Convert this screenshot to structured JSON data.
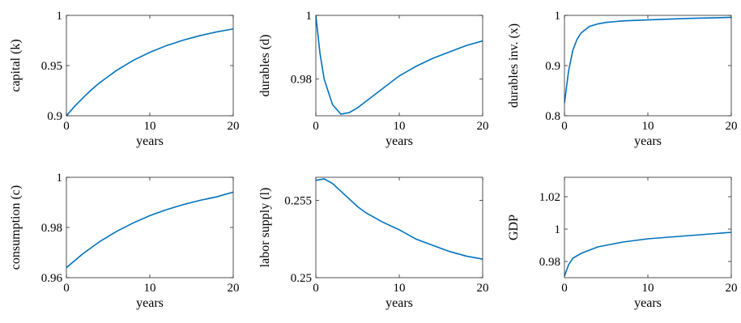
{
  "chart_data": [
    {
      "type": "line",
      "ylabel": "capital (k)",
      "xlabel": "years",
      "xlim": [
        0,
        20
      ],
      "xticks": [
        0,
        10,
        20
      ],
      "ylim": [
        0.9,
        1
      ],
      "yticks": [
        0.9,
        0.95,
        1
      ],
      "series": [
        {
          "color": "#0072bd",
          "x": [
            0,
            1,
            2,
            3,
            4,
            6,
            8,
            10,
            12,
            14,
            16,
            18,
            20
          ],
          "values": [
            0.9,
            0.9095,
            0.918,
            0.9259,
            0.933,
            0.9451,
            0.9551,
            0.9632,
            0.9699,
            0.9753,
            0.9798,
            0.9835,
            0.9865
          ]
        }
      ]
    },
    {
      "type": "line",
      "ylabel": "durables (d)",
      "xlabel": "years",
      "xlim": [
        0,
        20
      ],
      "xticks": [
        0,
        10,
        20
      ],
      "ylim": [
        0.9685,
        1
      ],
      "yticks": [
        0.98,
        1
      ],
      "series": [
        {
          "color": "#0072bd",
          "x": [
            0,
            0.5,
            1,
            2,
            3,
            4,
            5,
            6,
            8,
            10,
            12,
            14,
            16,
            18,
            20
          ],
          "values": [
            1,
            0.988,
            0.98,
            0.972,
            0.969,
            0.9695,
            0.971,
            0.973,
            0.977,
            0.981,
            0.984,
            0.9865,
            0.9885,
            0.9905,
            0.992
          ]
        }
      ]
    },
    {
      "type": "line",
      "ylabel": "durables inv. (x)",
      "xlabel": "years",
      "xlim": [
        0,
        20
      ],
      "xticks": [
        0,
        10,
        20
      ],
      "ylim": [
        0.8,
        1
      ],
      "yticks": [
        0.8,
        0.9,
        1
      ],
      "series": [
        {
          "color": "#0072bd",
          "x": [
            0,
            0.5,
            1,
            1.5,
            2,
            3,
            4,
            5,
            7,
            10,
            15,
            20
          ],
          "values": [
            0.825,
            0.89,
            0.93,
            0.952,
            0.965,
            0.978,
            0.983,
            0.986,
            0.989,
            0.991,
            0.994,
            0.996
          ]
        }
      ]
    },
    {
      "type": "line",
      "ylabel": "consumption (c)",
      "xlabel": "years",
      "xlim": [
        0,
        20
      ],
      "xticks": [
        0,
        10,
        20
      ],
      "ylim": [
        0.96,
        1
      ],
      "yticks": [
        0.96,
        0.98,
        1
      ],
      "series": [
        {
          "color": "#0072bd",
          "x": [
            0,
            2,
            4,
            6,
            8,
            10,
            12,
            14,
            16,
            18,
            20
          ],
          "values": [
            0.964,
            0.9696,
            0.9744,
            0.9784,
            0.9818,
            0.9847,
            0.9871,
            0.9891,
            0.9908,
            0.9922,
            0.9941
          ]
        }
      ]
    },
    {
      "type": "line",
      "ylabel": "labor supply (l)",
      "xlabel": "years",
      "xlim": [
        0,
        20
      ],
      "xticks": [
        0,
        10,
        20
      ],
      "ylim": [
        0.25,
        0.2565
      ],
      "yticks": [
        0.25,
        0.255
      ],
      "series": [
        {
          "color": "#0072bd",
          "x": [
            0,
            1,
            2,
            3,
            4,
            5,
            6,
            8,
            10,
            12,
            14,
            16,
            18,
            20
          ],
          "values": [
            0.2563,
            0.2564,
            0.2561,
            0.2556,
            0.2551,
            0.2546,
            0.2542,
            0.2536,
            0.2531,
            0.2525,
            0.2521,
            0.2517,
            0.2514,
            0.2512
          ]
        }
      ]
    },
    {
      "type": "line",
      "ylabel": "GDP",
      "xlabel": "years",
      "xlim": [
        0,
        20
      ],
      "xticks": [
        0,
        10,
        20
      ],
      "ylim": [
        0.97,
        1.032
      ],
      "yticks": [
        0.98,
        1,
        1.02
      ],
      "series": [
        {
          "color": "#0072bd",
          "x": [
            0,
            0.5,
            1,
            2,
            3,
            4,
            5,
            7,
            10,
            15,
            20
          ],
          "values": [
            0.971,
            0.978,
            0.982,
            0.985,
            0.987,
            0.989,
            0.99,
            0.992,
            0.994,
            0.996,
            0.998
          ]
        }
      ]
    }
  ]
}
